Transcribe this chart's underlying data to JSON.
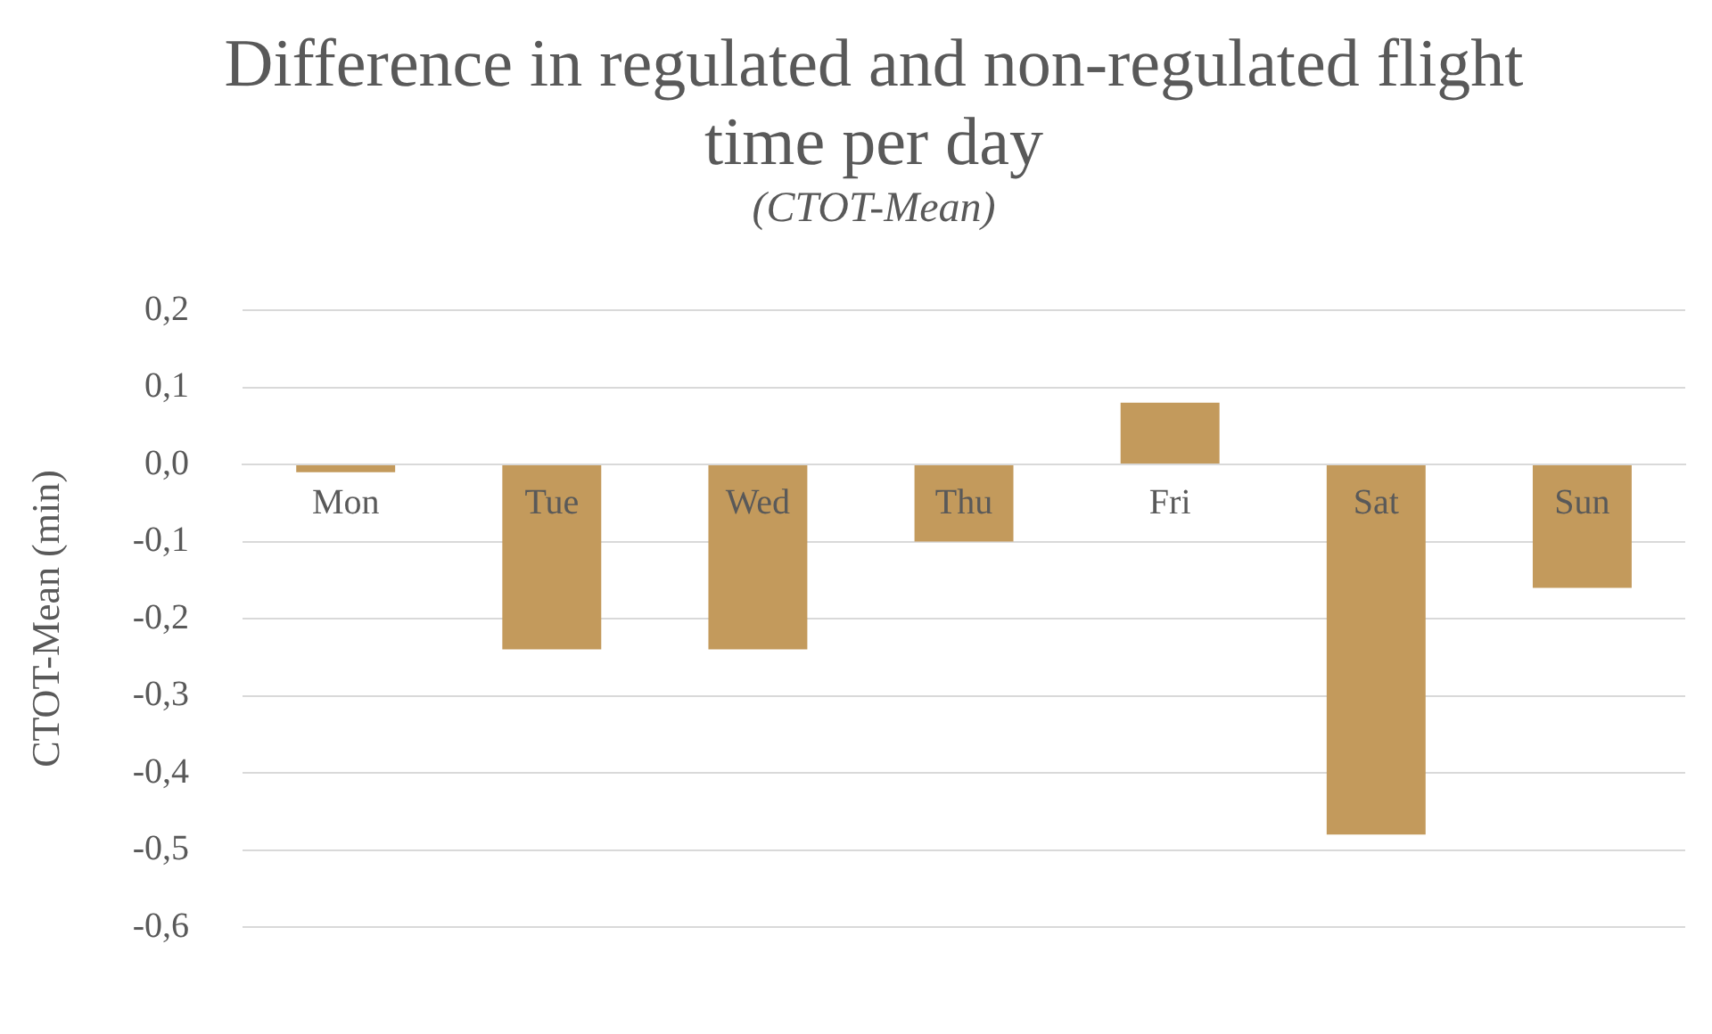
{
  "chart_data": {
    "type": "bar",
    "title": "Difference in regulated and non-regulated flight time per day",
    "subtitle": "(CTOT-Mean)",
    "ylabel": "CTOT-Mean (min)",
    "categories": [
      "Mon",
      "Tue",
      "Wed",
      "Thu",
      "Fri",
      "Sat",
      "Sun"
    ],
    "values": [
      -0.01,
      -0.24,
      -0.24,
      -0.1,
      0.08,
      -0.48,
      -0.16
    ],
    "color": "#c39a5c",
    "ylim": [
      -0.6,
      0.2
    ],
    "yticks": [
      {
        "value": 0.2,
        "label": "0,2"
      },
      {
        "value": 0.1,
        "label": "0,1"
      },
      {
        "value": 0,
        "label": "0,0"
      },
      {
        "value": -0.1,
        "label": "-0,1"
      },
      {
        "value": -0.2,
        "label": "-0,2"
      },
      {
        "value": -0.3,
        "label": "-0,3"
      },
      {
        "value": -0.4,
        "label": "-0,4"
      },
      {
        "value": -0.5,
        "label": "-0,5"
      },
      {
        "value": -0.6,
        "label": "-0,6"
      }
    ],
    "grid": "y"
  }
}
